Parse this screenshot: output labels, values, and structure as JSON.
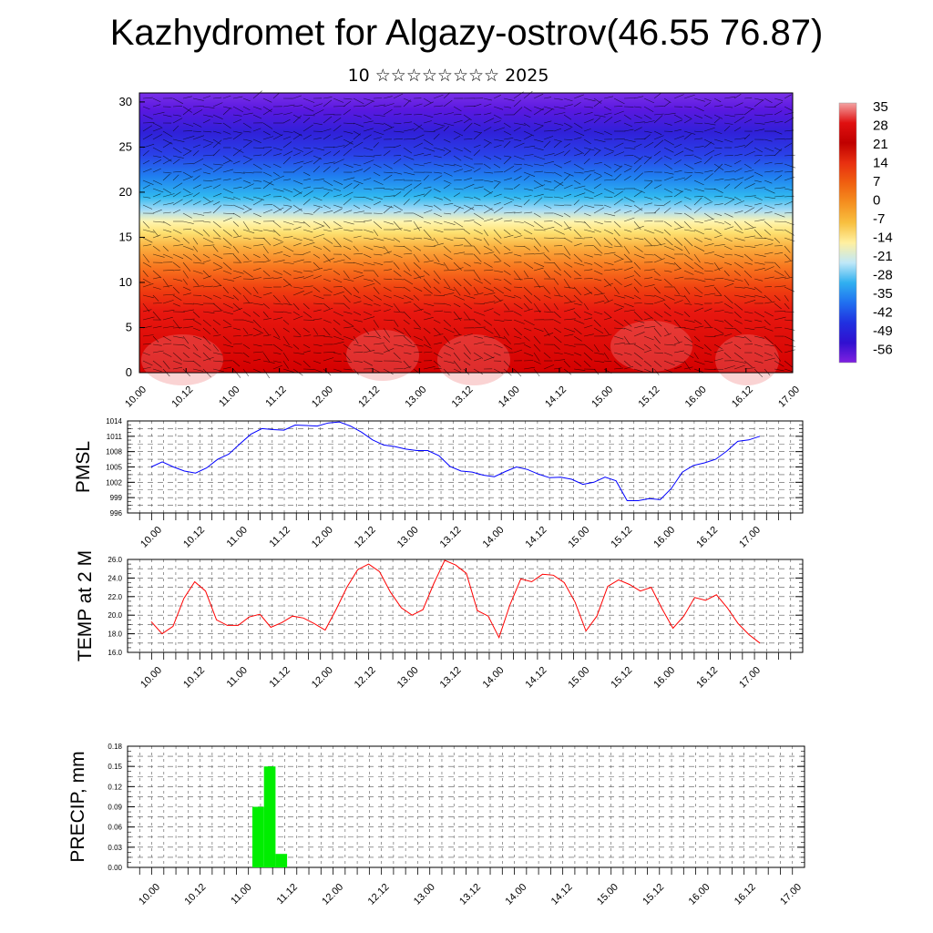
{
  "title": "Kazhydromet for Algazy-ostrov(46.55 76.87)",
  "subtitle": "10 ☆☆☆☆☆☆☆☆ 2025",
  "time_ticks": [
    "10.00",
    "10.12",
    "11.00",
    "11.12",
    "12.00",
    "12.12",
    "13.00",
    "13.12",
    "14.00",
    "14.12",
    "15.00",
    "15.12",
    "16.00",
    "16.12",
    "17.00"
  ],
  "chart_data": [
    {
      "type": "heatmap",
      "title": "",
      "y_ticks": [
        "0",
        "5",
        "10",
        "15",
        "20",
        "25",
        "30"
      ],
      "ylim": [
        0,
        31
      ],
      "colorbar_labels": [
        "35",
        "28",
        "21",
        "14",
        "7",
        "0",
        "-7",
        "-14",
        "-21",
        "-28",
        "-35",
        "-42",
        "-49",
        "-56"
      ],
      "colorbar_colors": [
        "#f3a3a3",
        "#e01010",
        "#c00000",
        "#e83010",
        "#f06010",
        "#f59020",
        "#f8c040",
        "#fff0a0",
        "#c0e8f8",
        "#30b0f0",
        "#2070f0",
        "#2030e0",
        "#3010d0",
        "#8020e0"
      ],
      "overlay": "wind vectors"
    },
    {
      "type": "line",
      "ylabel": "PMSL",
      "y_ticks": [
        "996",
        "999",
        "1002",
        "1005",
        "1008",
        "1011",
        "1014"
      ],
      "ylim": [
        996,
        1014
      ],
      "color": "#0000ff",
      "values": [
        1005,
        1006,
        1005,
        1004.2,
        1003.8,
        1004.8,
        1006.5,
        1007.5,
        1009.5,
        1011.4,
        1012.5,
        1012.3,
        1012.2,
        1013.2,
        1013.1,
        1013,
        1013.6,
        1013.8,
        1013,
        1011.8,
        1010.3,
        1009.3,
        1009,
        1008.5,
        1008.2,
        1008.2,
        1007.2,
        1005.1,
        1004.2,
        1004,
        1003.4,
        1003.1,
        1004.1,
        1005,
        1004.5,
        1003.6,
        1002.9,
        1003,
        1002.6,
        1001.6,
        1002,
        1003,
        1002.3,
        998.4,
        998.4,
        998.8,
        998.6,
        1000.8,
        1004,
        1005.3,
        1005.8,
        1006.5,
        1008.1,
        1010,
        1010.3,
        1011
      ]
    },
    {
      "type": "line",
      "ylabel": "TEMP at 2 M",
      "y_ticks": [
        "16.0",
        "18.0",
        "20.0",
        "22.0",
        "24.0",
        "26.0"
      ],
      "ylim": [
        16,
        26
      ],
      "color": "#ff0000",
      "values": [
        19.3,
        18,
        18.8,
        21.8,
        23.6,
        22.6,
        19.5,
        18.9,
        18.9,
        19.8,
        20.1,
        18.7,
        19.2,
        19.9,
        19.7,
        19.1,
        18.4,
        20.6,
        23,
        24.9,
        25.5,
        24.7,
        22.5,
        20.8,
        20,
        20.6,
        23.4,
        25.9,
        25.4,
        24.5,
        20.5,
        19.9,
        17.6,
        21.1,
        23.9,
        23.6,
        24.4,
        24.3,
        23.5,
        21.4,
        18.3,
        19.9,
        23.1,
        23.8,
        23.3,
        22.6,
        23,
        20.7,
        18.6,
        19.9,
        21.9,
        21.6,
        22.2,
        20.8,
        19.1,
        17.9,
        17
      ]
    },
    {
      "type": "bar",
      "ylabel": "PRECIP, mm",
      "y_ticks": [
        "0.00",
        "0.03",
        "0.06",
        "0.09",
        "0.12",
        "0.15",
        "0.18"
      ],
      "ylim": [
        0,
        0.18
      ],
      "color": "#00ee00",
      "bars": [
        {
          "t_hours": 30,
          "value": 0.09
        },
        {
          "t_hours": 33,
          "value": 0.15
        },
        {
          "t_hours": 36,
          "value": 0.02
        }
      ]
    }
  ]
}
